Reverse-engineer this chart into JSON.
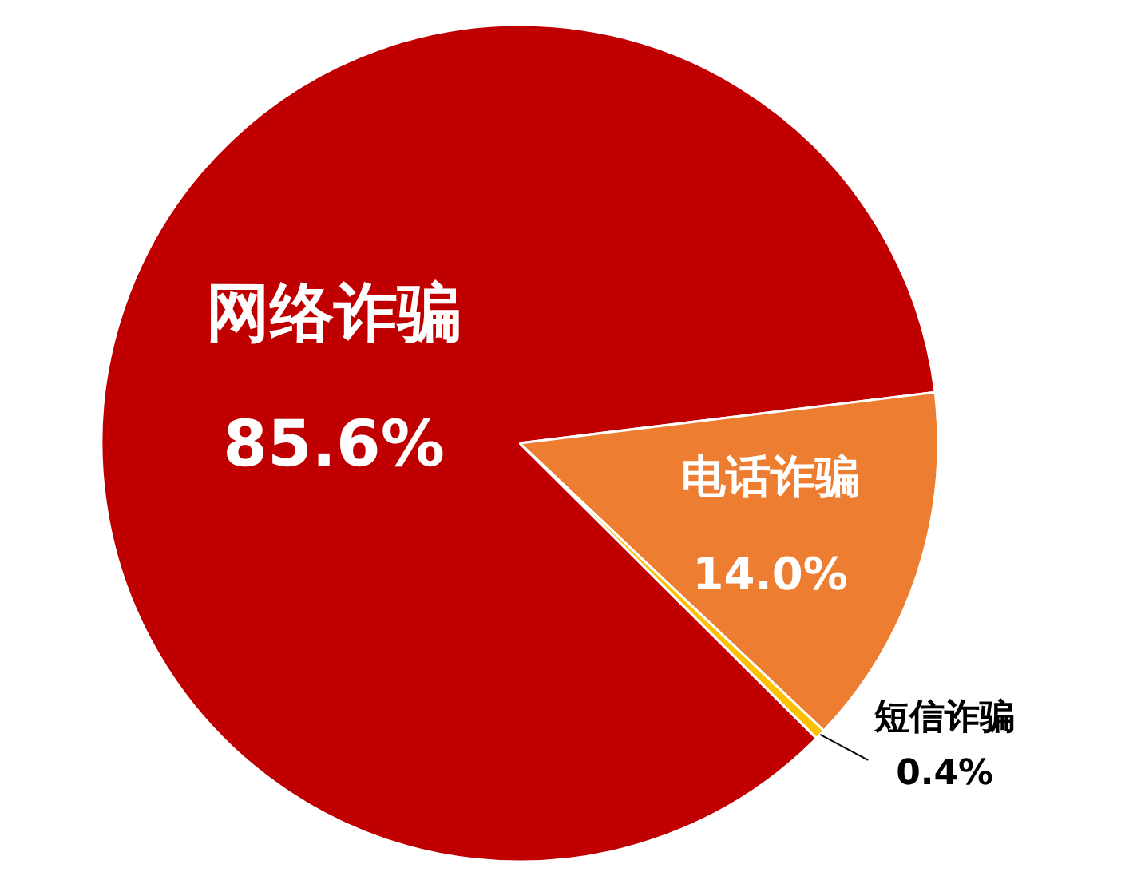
{
  "chart_data": {
    "type": "pie",
    "categories": [
      "网络诈骗",
      "电话诈骗",
      "短信诈骗"
    ],
    "values": [
      85.6,
      14.0,
      0.4
    ],
    "colors": [
      "#c00000",
      "#ed7d31",
      "#ffc000"
    ],
    "value_labels": [
      "85.6%",
      "14.0%",
      "0.4%"
    ]
  }
}
